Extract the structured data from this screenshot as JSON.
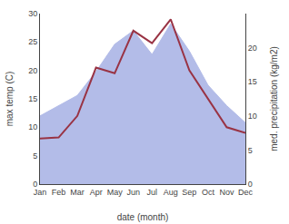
{
  "chart_data": {
    "type": "line",
    "categories": [
      "Jan",
      "Feb",
      "Mar",
      "Apr",
      "May",
      "Jun",
      "Jul",
      "Aug",
      "Sep",
      "Oct",
      "Nov",
      "Dec"
    ],
    "xlabel": "date (month)",
    "ylabel": "max temp (C)",
    "y2label": "med. precipitation (kg/m2)",
    "ylim": [
      0,
      30
    ],
    "yticks": [
      0,
      5,
      10,
      15,
      20,
      25,
      30
    ],
    "y2lim": [
      0,
      25
    ],
    "y2ticks": [
      0,
      5,
      10,
      15,
      20
    ],
    "grid": false,
    "series": [
      {
        "type": "area",
        "color": "#b3bce8",
        "axis": "y2",
        "values": [
          10.0,
          11.5,
          13.0,
          16.5,
          20.5,
          22.5,
          19.0,
          23.5,
          19.5,
          14.5,
          11.5,
          9.0
        ]
      },
      {
        "type": "line",
        "color": "#993344",
        "values": [
          8.0,
          8.2,
          12.0,
          20.5,
          19.5,
          27.0,
          24.8,
          29.0,
          20.0,
          15.0,
          10.0,
          9.0
        ]
      }
    ]
  }
}
